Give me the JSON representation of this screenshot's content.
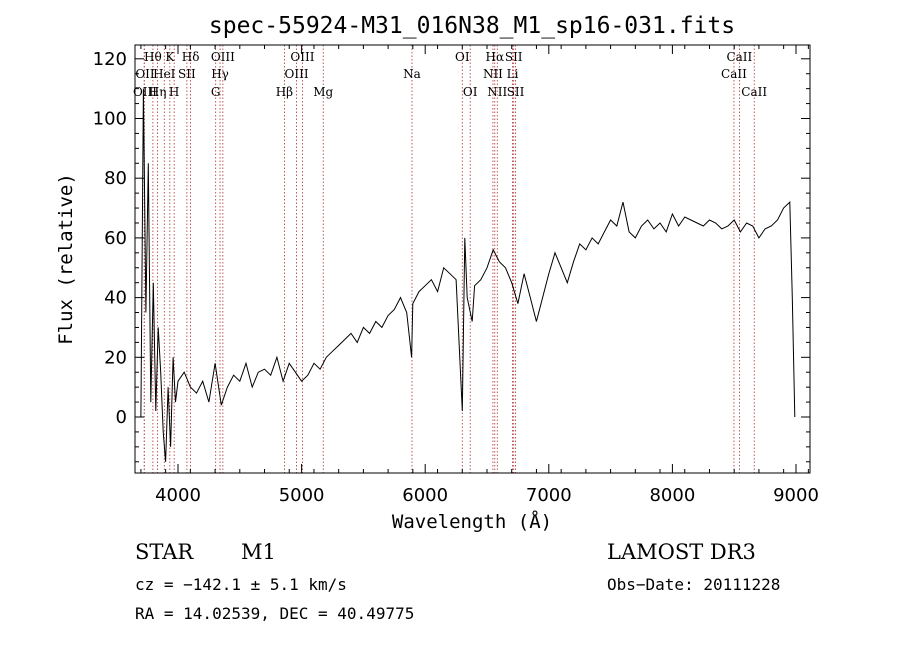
{
  "chart_data": {
    "type": "line",
    "title": "spec-55924-M31_016N38_M1_sp16-031.fits",
    "xlabel": "Wavelength (Å)",
    "ylabel": "Flux (relative)",
    "xlim": [
      3700,
      9100
    ],
    "ylim": [
      -20,
      125
    ],
    "xticks": [
      4000,
      5000,
      6000,
      7000,
      8000,
      9000
    ],
    "yticks": [
      0,
      20,
      40,
      60,
      80,
      100,
      120
    ],
    "series": [
      {
        "name": "spectrum",
        "x": [
          3700,
          3720,
          3740,
          3760,
          3780,
          3800,
          3820,
          3840,
          3860,
          3880,
          3900,
          3920,
          3940,
          3960,
          3980,
          4000,
          4050,
          4100,
          4150,
          4200,
          4250,
          4300,
          4350,
          4400,
          4450,
          4500,
          4550,
          4600,
          4650,
          4700,
          4750,
          4800,
          4850,
          4900,
          4950,
          5000,
          5050,
          5100,
          5150,
          5200,
          5250,
          5300,
          5350,
          5400,
          5450,
          5500,
          5550,
          5600,
          5650,
          5700,
          5750,
          5800,
          5850,
          5890,
          5900,
          5950,
          6000,
          6050,
          6100,
          6150,
          6200,
          6250,
          6300,
          6320,
          6340,
          6380,
          6400,
          6450,
          6500,
          6550,
          6600,
          6650,
          6700,
          6750,
          6800,
          6850,
          6900,
          6950,
          7000,
          7050,
          7100,
          7150,
          7200,
          7250,
          7300,
          7350,
          7400,
          7450,
          7500,
          7550,
          7600,
          7650,
          7700,
          7750,
          7800,
          7850,
          7900,
          7950,
          8000,
          8050,
          8100,
          8150,
          8200,
          8250,
          8300,
          8350,
          8400,
          8450,
          8500,
          8550,
          8600,
          8650,
          8700,
          8750,
          8800,
          8850,
          8900,
          8950,
          8970,
          8990
        ],
        "y": [
          0,
          110,
          35,
          85,
          5,
          45,
          2,
          30,
          15,
          -5,
          -15,
          10,
          -10,
          20,
          5,
          12,
          15,
          10,
          8,
          12,
          5,
          18,
          4,
          10,
          14,
          12,
          18,
          10,
          15,
          16,
          14,
          20,
          12,
          18,
          15,
          12,
          14,
          18,
          16,
          20,
          22,
          24,
          26,
          28,
          25,
          30,
          28,
          32,
          30,
          34,
          36,
          40,
          35,
          20,
          38,
          42,
          44,
          46,
          42,
          50,
          48,
          46,
          2,
          60,
          40,
          32,
          44,
          46,
          50,
          56,
          52,
          50,
          45,
          38,
          48,
          40,
          32,
          40,
          48,
          55,
          50,
          45,
          52,
          58,
          56,
          60,
          58,
          62,
          66,
          64,
          72,
          62,
          60,
          64,
          66,
          63,
          65,
          62,
          68,
          64,
          67,
          66,
          65,
          64,
          66,
          65,
          63,
          64,
          66,
          62,
          65,
          64,
          60,
          63,
          64,
          66,
          70,
          72,
          40,
          0
        ]
      }
    ],
    "lines": [
      {
        "label": "Hθ",
        "x": 3797,
        "row": 0
      },
      {
        "label": "K",
        "x": 3934,
        "row": 0
      },
      {
        "label": "Hδ",
        "x": 4102,
        "row": 0
      },
      {
        "label": "OIII",
        "x": 4363,
        "row": 0
      },
      {
        "label": "OIII",
        "x": 5007,
        "row": 0
      },
      {
        "label": "OI",
        "x": 6300,
        "row": 0
      },
      {
        "label": "Hα",
        "x": 6563,
        "row": 0
      },
      {
        "label": "SII",
        "x": 6716,
        "row": 0
      },
      {
        "label": "CaII",
        "x": 8542,
        "row": 0
      },
      {
        "label": "OII",
        "x": 3727,
        "row": 1
      },
      {
        "label": "HeI",
        "x": 3889,
        "row": 1
      },
      {
        "label": "SII",
        "x": 4072,
        "row": 1
      },
      {
        "label": "Hγ",
        "x": 4340,
        "row": 1
      },
      {
        "label": "OIII",
        "x": 4959,
        "row": 1
      },
      {
        "label": "Na",
        "x": 5893,
        "row": 1
      },
      {
        "label": "NII",
        "x": 6548,
        "row": 1
      },
      {
        "label": "Li",
        "x": 6707,
        "row": 1
      },
      {
        "label": "CaII",
        "x": 8498,
        "row": 1
      },
      {
        "label": "OIII",
        "x": 3727,
        "row": 2
      },
      {
        "label": "Hη",
        "x": 3835,
        "row": 2
      },
      {
        "label": "H",
        "x": 3969,
        "row": 2
      },
      {
        "label": "G",
        "x": 4305,
        "row": 2
      },
      {
        "label": "Hβ",
        "x": 4861,
        "row": 2
      },
      {
        "label": "Mg",
        "x": 5175,
        "row": 2
      },
      {
        "label": "OI",
        "x": 6364,
        "row": 2
      },
      {
        "label": "NII",
        "x": 6583,
        "row": 2
      },
      {
        "label": "SII",
        "x": 6731,
        "row": 2
      },
      {
        "label": "CaII",
        "x": 8662,
        "row": 2
      }
    ]
  },
  "footer": {
    "object_class": "STAR",
    "subclass": "M1",
    "survey": "LAMOST DR3",
    "redshift": "cz = −142.1 ± 5.1 km/s",
    "obs_date": "Obs−Date: 20111228",
    "coordinates": "RA =  14.02539, DEC =  40.49775"
  }
}
